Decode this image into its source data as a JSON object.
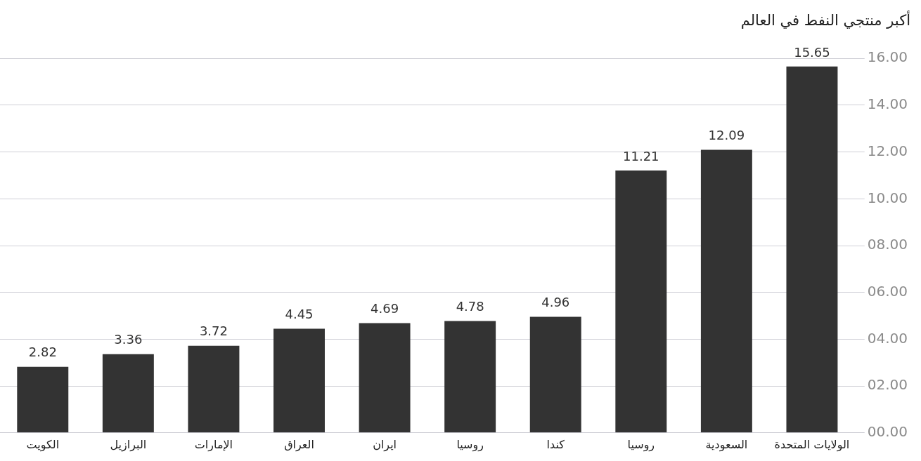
{
  "chart_data": {
    "type": "bar",
    "title": "أكبر منتجي النفط في العالم",
    "categories": [
      "الكويت",
      "البرازيل",
      "الإمارات",
      "العراق",
      "ايران",
      "روسيا",
      "كندا",
      "روسيا",
      "السعودية",
      "الولايات المتحدة"
    ],
    "values": [
      2.82,
      3.36,
      3.72,
      4.45,
      4.69,
      4.78,
      4.96,
      11.21,
      12.09,
      15.65
    ],
    "color": "#333333",
    "ylim": [
      0,
      16
    ],
    "yticks": [
      {
        "value": 0,
        "label": "00.00"
      },
      {
        "value": 2,
        "label": "02.00"
      },
      {
        "value": 4,
        "label": "04.00"
      },
      {
        "value": 6,
        "label": "06.00"
      },
      {
        "value": 8,
        "label": "08.00"
      },
      {
        "value": 10,
        "label": "10.00"
      },
      {
        "value": 12,
        "label": "12.00"
      },
      {
        "value": 14,
        "label": "14.00"
      },
      {
        "value": 16,
        "label": "16.00"
      }
    ],
    "grid": "y",
    "data_labels": true
  }
}
